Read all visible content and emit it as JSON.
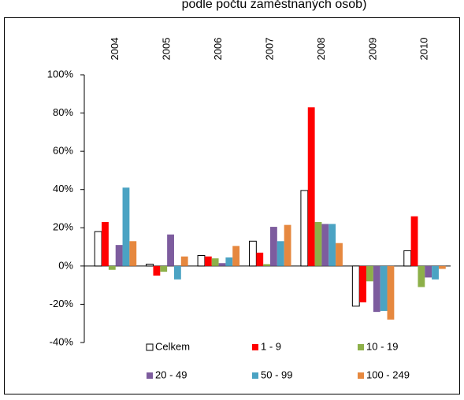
{
  "chart_data": {
    "type": "bar",
    "title": "podle počtu zaměstnaných osob)",
    "categories": [
      "2004",
      "2005",
      "2006",
      "2007",
      "2008",
      "2009",
      "2010"
    ],
    "series": [
      {
        "name": "Celkem",
        "color": "#ffffff",
        "values": [
          18,
          1,
          5.5,
          13,
          39.5,
          -21,
          8
        ]
      },
      {
        "name": "1 - 9",
        "color": "#ff0000",
        "values": [
          23,
          -5,
          5,
          7,
          83,
          -19,
          26
        ]
      },
      {
        "name": "10 - 19",
        "color": "#8db049",
        "values": [
          -2,
          -3,
          4,
          1,
          23,
          -8,
          -11
        ]
      },
      {
        "name": "20 - 49",
        "color": "#7d5c9e",
        "values": [
          11,
          16.5,
          1.5,
          20.5,
          22,
          -24,
          -6
        ]
      },
      {
        "name": "50 - 99",
        "color": "#4ba3c3",
        "values": [
          41,
          -7,
          4.5,
          13,
          22,
          -23.5,
          -7
        ]
      },
      {
        "name": "100 - 249",
        "color": "#e6883f",
        "values": [
          13,
          5,
          10.5,
          21.5,
          12,
          -28,
          -1.5
        ]
      }
    ],
    "ylim": [
      -40,
      100
    ],
    "yticks": [
      {
        "value": -40,
        "label": "-40%"
      },
      {
        "value": -20,
        "label": "-20%"
      },
      {
        "value": 0,
        "label": "0%"
      },
      {
        "value": 20,
        "label": "20%"
      },
      {
        "value": 40,
        "label": "40%"
      },
      {
        "value": 60,
        "label": "60%"
      },
      {
        "value": 80,
        "label": "80%"
      },
      {
        "value": 100,
        "label": "100%"
      }
    ],
    "grid": false
  }
}
